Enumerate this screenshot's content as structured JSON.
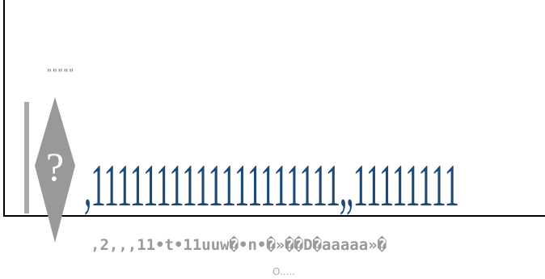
{
  "garbled_view": {
    "quote_marks": "\"\"\"\"\"",
    "diamond_glyph": "?",
    "baseline_text": ",1111111111111111111,,11111111",
    "caption_text": ",2,,,11•t•11uuw�•n•�»��D�aaaaa»�",
    "sub_caption_text": "O....."
  },
  "colors": {
    "frame": "#000000",
    "diamond_fill": "#999999",
    "diamond_glyph": "#ffffff",
    "grey_bar": "#aaaaaa",
    "baseline_text": "#1c4978",
    "caption_text": "#9a9a9a"
  },
  "icons": {
    "diamond": "question-diamond-icon"
  }
}
